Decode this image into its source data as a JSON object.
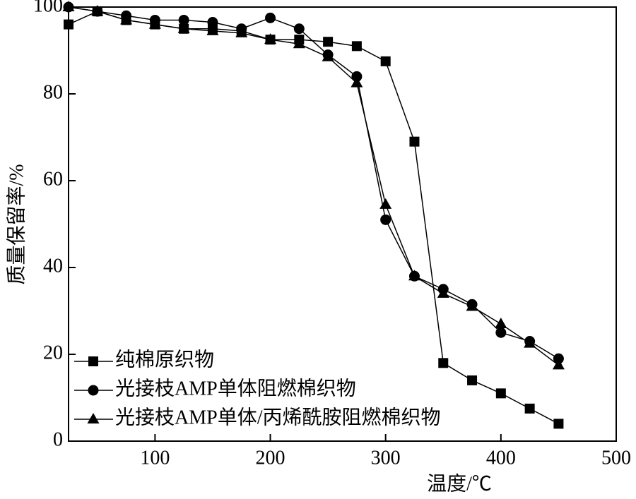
{
  "chart_data": {
    "type": "line",
    "x_label": "温度/℃",
    "y_label": "质量保留率/%",
    "x": [
      25,
      50,
      75,
      100,
      125,
      150,
      175,
      200,
      225,
      250,
      275,
      300,
      325,
      350,
      375,
      400,
      425,
      450
    ],
    "series": [
      {
        "name": "纯棉原织物",
        "color": "#000000",
        "marker": "square",
        "values": [
          96,
          99,
          97,
          96,
          95,
          95,
          94.5,
          92.5,
          92.5,
          92,
          91,
          87.5,
          69,
          18,
          14,
          11,
          7.5,
          4
        ]
      },
      {
        "name": "光接枝AMP单体阻燃棉织物",
        "color": "#000000",
        "marker": "circle",
        "values": [
          100,
          99,
          98,
          97,
          97,
          96.5,
          95,
          97.5,
          95,
          89,
          84,
          51,
          38,
          35,
          31.5,
          25,
          23,
          19
        ]
      },
      {
        "name": "光接枝AMP单体/丙烯酰胺阻燃棉织物",
        "color": "#000000",
        "marker": "triangle",
        "values": [
          100,
          99,
          97,
          96,
          95,
          94.5,
          94,
          92.5,
          91.5,
          88.5,
          82.5,
          54.5,
          38,
          34,
          31,
          27,
          22.5,
          17.5
        ]
      }
    ],
    "xlim": [
      25,
      500
    ],
    "xticks": [
      100,
      200,
      300,
      400,
      500
    ],
    "ylim": [
      0,
      100
    ],
    "yticks": [
      0,
      20,
      40,
      60,
      80,
      100
    ],
    "legend": "lower left"
  }
}
